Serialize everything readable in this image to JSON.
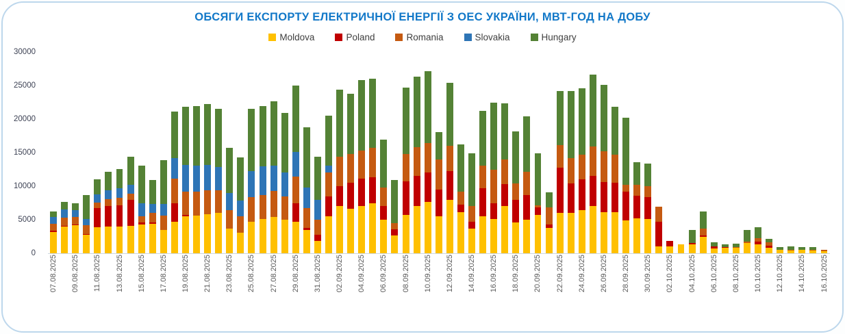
{
  "title": "ОБСЯГИ ЕКСПОРТУ ЕЛЕКТРИЧНОЇ ЕНЕРГІЇ З ОЕС УКРАЇНИ, МВТ-ГОД НА ДОБУ",
  "title_color": "#1278C8",
  "legend": [
    {
      "label": "Moldova",
      "color": "#FFC000"
    },
    {
      "label": "Poland",
      "color": "#C00000"
    },
    {
      "label": "Romania",
      "color": "#C55A11"
    },
    {
      "label": "Slovakia",
      "color": "#2E75B6"
    },
    {
      "label": "Hungary",
      "color": "#548235"
    }
  ],
  "chart_data": {
    "type": "bar",
    "stacked": true,
    "title": "ОБСЯГИ ЕКСПОРТУ ЕЛЕКТРИЧНОЇ ЕНЕРГІЇ З ОЕС УКРАЇНИ, МВТ-ГОД НА ДОБУ",
    "xlabel": "",
    "ylabel": "",
    "ylim": [
      0,
      30000
    ],
    "y_ticks": [
      0,
      5000,
      10000,
      15000,
      20000,
      25000,
      30000
    ],
    "grid": false,
    "legend_position": "top",
    "x_tick_step": 2,
    "x": [
      "07.08.2025",
      "08.08.2025",
      "09.08.2025",
      "10.08.2025",
      "11.08.2025",
      "12.08.2025",
      "13.08.2025",
      "14.08.2025",
      "15.08.2025",
      "16.08.2025",
      "17.08.2025",
      "18.08.2025",
      "19.08.2025",
      "20.08.2025",
      "21.08.2025",
      "22.08.2025",
      "23.08.2025",
      "24.08.2025",
      "25.08.2025",
      "26.08.2025",
      "27.08.2025",
      "28.08.2025",
      "29.08.2025",
      "30.08.2025",
      "31.08.2025",
      "01.09.2025",
      "02.09.2025",
      "03.09.2025",
      "04.09.2025",
      "05.09.2025",
      "06.09.2025",
      "07.09.2025",
      "08.09.2025",
      "09.09.2025",
      "10.09.2025",
      "11.09.2025",
      "12.09.2025",
      "13.09.2025",
      "14.09.2025",
      "15.09.2025",
      "16.09.2025",
      "17.09.2025",
      "18.09.2025",
      "19.09.2025",
      "20.09.2025",
      "21.09.2025",
      "22.09.2025",
      "23.09.2025",
      "24.09.2025",
      "25.09.2025",
      "26.09.2025",
      "27.09.2025",
      "28.09.2025",
      "29.09.2025",
      "30.09.2025",
      "01.10.2025",
      "02.10.2025",
      "03.10.2025",
      "04.10.2025",
      "05.10.2025",
      "06.10.2025",
      "07.10.2025",
      "08.10.2025",
      "09.10.2025",
      "10.10.2025",
      "11.10.2025",
      "12.10.2025",
      "13.10.2025",
      "14.10.2025",
      "15.10.2025",
      "16.10.2025"
    ],
    "series": [
      {
        "name": "Moldova",
        "color": "#FFC000",
        "values": [
          3200,
          3950,
          4200,
          2750,
          3900,
          4000,
          4000,
          4100,
          4250,
          4400,
          3500,
          4650,
          5500,
          5650,
          5850,
          6050,
          3650,
          3050,
          4650,
          5150,
          5400,
          5000,
          4650,
          3500,
          1850,
          5500,
          7000,
          6650,
          7000,
          7400,
          5050,
          2700,
          5750,
          7000,
          7650,
          5500,
          7950,
          6150,
          3650,
          5500,
          5150,
          7000,
          4600,
          5050,
          5700,
          3800,
          6000,
          6000,
          6400,
          7000,
          6100,
          6100,
          4900,
          5200,
          5100,
          1000,
          1000,
          1300,
          1300,
          2400,
          700,
          800,
          800,
          1500,
          1350,
          800,
          500,
          400,
          500,
          400,
          350
        ]
      },
      {
        "name": "Poland",
        "color": "#C00000",
        "values": [
          200,
          150,
          100,
          150,
          2800,
          3000,
          3150,
          3850,
          300,
          200,
          0,
          2850,
          200,
          0,
          0,
          0,
          0,
          0,
          0,
          0,
          0,
          0,
          2850,
          250,
          900,
          3000,
          3000,
          3850,
          4150,
          3950,
          1950,
          900,
          4950,
          4500,
          4400,
          4000,
          4250,
          1050,
          1050,
          4150,
          2250,
          3350,
          3350,
          3650,
          1150,
          500,
          6800,
          4400,
          4600,
          4500,
          4500,
          4450,
          4300,
          3350,
          3300,
          3700,
          800,
          0,
          250,
          300,
          300,
          150,
          0,
          0,
          400,
          300,
          0,
          0,
          0,
          0,
          0
        ]
      },
      {
        "name": "Romania",
        "color": "#C55A11",
        "values": [
          1000,
          1250,
          1150,
          1300,
          900,
          1050,
          1100,
          900,
          1000,
          1450,
          2150,
          3650,
          3500,
          3500,
          3550,
          3300,
          2750,
          2450,
          3700,
          3500,
          3850,
          3500,
          3900,
          2950,
          2300,
          3550,
          4350,
          4350,
          4150,
          4400,
          2750,
          900,
          4150,
          4350,
          4350,
          4450,
          3850,
          2000,
          2350,
          3400,
          5000,
          3650,
          2450,
          3450,
          300,
          2500,
          3350,
          3800,
          3650,
          4450,
          4600,
          4150,
          1000,
          1700,
          1650,
          2200,
          0,
          0,
          0,
          1000,
          0,
          0,
          100,
          200,
          450,
          500,
          0,
          100,
          0,
          100,
          150
        ]
      },
      {
        "name": "Slovakia",
        "color": "#2E75B6",
        "values": [
          1050,
          1150,
          1000,
          950,
          1150,
          1350,
          1450,
          1400,
          1900,
          1350,
          1700,
          3000,
          4000,
          3900,
          3800,
          3550,
          2600,
          2350,
          3850,
          4350,
          3800,
          3550,
          3750,
          3150,
          2900,
          1000,
          0,
          0,
          0,
          0,
          0,
          0,
          0,
          0,
          0,
          0,
          0,
          0,
          0,
          0,
          0,
          0,
          0,
          0,
          0,
          0,
          0,
          0,
          0,
          0,
          0,
          0,
          0,
          0,
          0,
          0,
          0,
          0,
          0,
          0,
          0,
          0,
          0,
          0,
          0,
          0,
          0,
          0,
          0,
          0,
          0
        ]
      },
      {
        "name": "Hungary",
        "color": "#548235",
        "values": [
          800,
          1200,
          1000,
          3550,
          2250,
          2700,
          2900,
          4150,
          5650,
          3500,
          6500,
          7000,
          8600,
          8850,
          9000,
          8600,
          6700,
          6400,
          9300,
          8900,
          9650,
          8850,
          9900,
          8900,
          6450,
          7450,
          10050,
          8900,
          10550,
          10300,
          7150,
          6400,
          9850,
          10450,
          10700,
          4150,
          9350,
          7050,
          7900,
          8150,
          10000,
          8350,
          7800,
          8250,
          7700,
          2300,
          8050,
          9950,
          9950,
          10650,
          9900,
          7100,
          10000,
          3350,
          3350,
          0,
          0,
          0,
          1950,
          2500,
          600,
          350,
          500,
          1800,
          1700,
          500,
          400,
          500,
          400,
          400,
          0
        ]
      }
    ]
  }
}
